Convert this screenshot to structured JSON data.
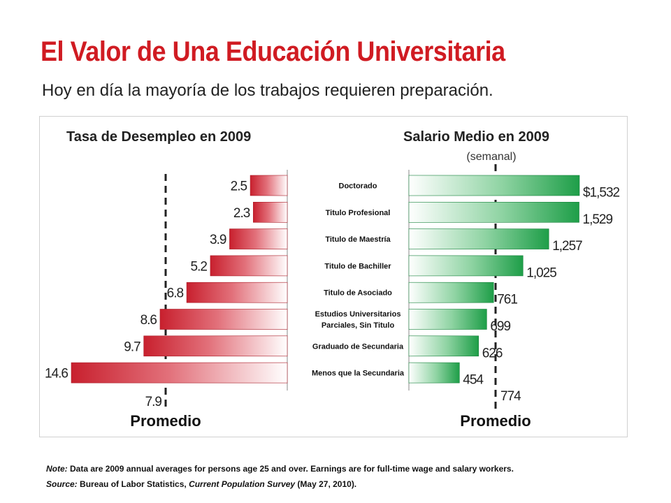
{
  "header": {
    "title": "El Valor de Una Educación Universitaria",
    "subtitle": "Hoy en día la mayoría de los trabajos requieren preparación."
  },
  "colors": {
    "title": "#d01b22",
    "unemployment_bar": "#c8202e",
    "salary_bar": "#1e9e48"
  },
  "chart_data": [
    {
      "type": "bar",
      "title": "Tasa de Desempleo en 2009",
      "orientation": "horizontal",
      "categories": [
        "Doctorado",
        "Titulo Profesional",
        "Titulo de Maestría",
        "Titulo de Bachiller",
        "Titulo de Asociado",
        "Estudios Universitarios Parciales, Sin Titulo",
        "Graduado de Secundaria",
        "Menos que la Secundaria"
      ],
      "values": [
        2.5,
        2.3,
        3.9,
        5.2,
        6.8,
        8.6,
        9.7,
        14.6
      ],
      "value_labels": [
        "2.5",
        "2.3",
        "3.9",
        "5.2",
        "6.8",
        "8.6",
        "9.7",
        "14.6"
      ],
      "average": 7.9,
      "average_label": "7.9",
      "average_caption": "Promedio",
      "xlim": [
        0,
        14.6
      ]
    },
    {
      "type": "bar",
      "title": "Salario Medio en 2009",
      "subtitle": "(semanal)",
      "orientation": "horizontal",
      "categories": [
        "Doctorado",
        "Titulo Profesional",
        "Titulo de Maestría",
        "Titulo de Bachiller",
        "Titulo de Asociado",
        "Estudios Universitarios Parciales, Sin Titulo",
        "Graduado de Secundaria",
        "Menos que la Secundaria"
      ],
      "values": [
        1532,
        1529,
        1257,
        1025,
        761,
        699,
        626,
        454
      ],
      "value_labels": [
        "$1,532",
        "1,529",
        "1,257",
        "1,025",
        "761",
        "699",
        "626",
        "454"
      ],
      "average": 774,
      "average_label": "774",
      "average_caption": "Promedio",
      "xlim": [
        0,
        1532
      ]
    }
  ],
  "category_labels": [
    [
      "Doctorado"
    ],
    [
      "Titulo Profesional"
    ],
    [
      "Titulo de Maestría"
    ],
    [
      "Titulo de Bachiller"
    ],
    [
      "Titulo de Asociado"
    ],
    [
      "Estudios Universitarios",
      "Parciales, Sin Titulo"
    ],
    [
      "Graduado de Secundaria"
    ],
    [
      "Menos que la Secundaria"
    ]
  ],
  "footnote": {
    "note_label": "Note:",
    "note_text": " Data are 2009 annual averages for persons age 25 and over. Earnings are for full-time wage and salary workers.",
    "source_label": "Source:",
    "source_text_1": " Bureau of Labor Statistics, ",
    "source_italic": "Current Population Survey",
    "source_text_2": " (May 27, 2010)."
  }
}
